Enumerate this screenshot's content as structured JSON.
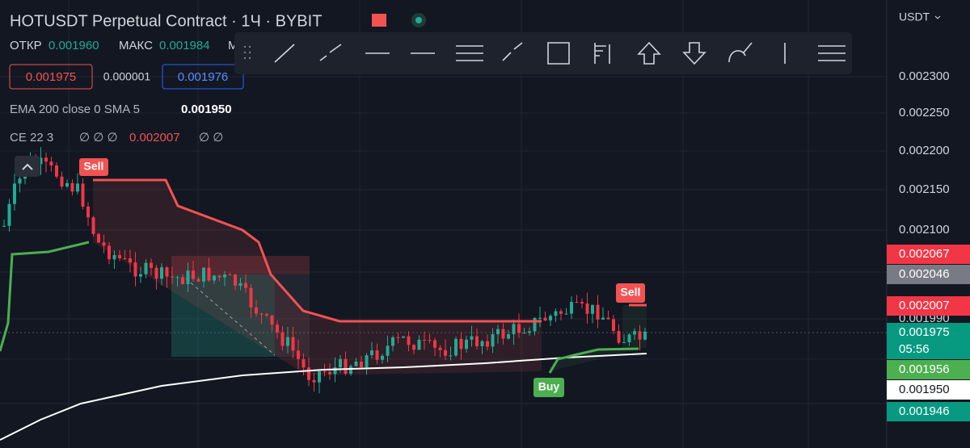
{
  "header": {
    "title": "HOTUSDT Perpetual Contract · 1Ч · BYBIT",
    "open_label": "ОТКР",
    "open_value": "0.001960",
    "high_label": "МАКС",
    "high_value": "0.001984",
    "low_label": "М",
    "sell_price": "0.001975",
    "spread": "0.000001",
    "buy_price": "0.001976"
  },
  "indicators": {
    "ema_label": "EMA 200 close 0 SMA 5",
    "ema_value": "0.001950",
    "ce_label": "CE 22 3",
    "ce_empty1": "∅ ∅ ∅",
    "ce_value": "0.002007",
    "ce_empty2": "∅ ∅"
  },
  "currency": "USDT",
  "price_axis": [
    "0.002300",
    "0.002250",
    "0.002200",
    "0.002150",
    "0.002100",
    "0.001990"
  ],
  "price_tags": [
    "0.002067",
    "0.002046",
    "0.002007",
    "0.001975",
    "05:56",
    "0.001956",
    "0.001950",
    "0.001946"
  ],
  "signals": [
    "Sell",
    "Buy",
    "Sell"
  ]
}
